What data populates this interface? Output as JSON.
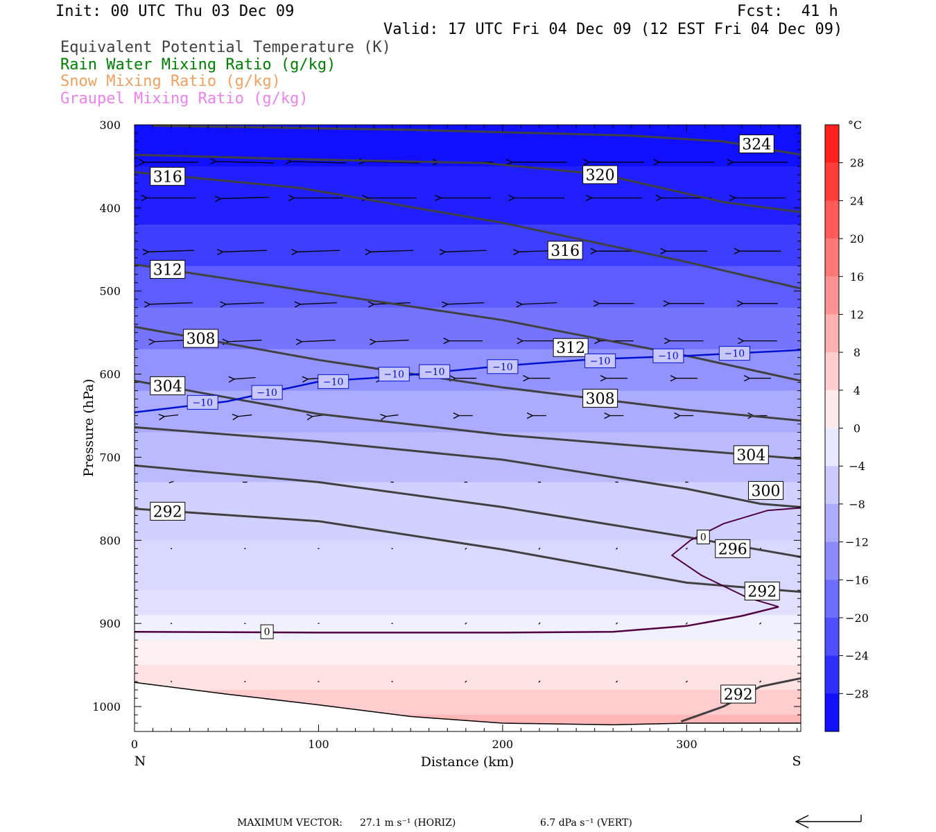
{
  "header": {
    "init": "Init: 00 UTC Thu 03 Dec 09",
    "fcst": "Fcst:  41 h",
    "valid": "Valid: 17 UTC Fri 04 Dec 09 (12 EST Fri 04 Dec 09)"
  },
  "legend_lines": [
    {
      "text": "Equivalent Potential Temperature (K)",
      "color": "#404040"
    },
    {
      "text": "Rain Water Mixing Ratio (g/kg)",
      "color": "#008000"
    },
    {
      "text": "Snow Mixing Ratio (g/kg)",
      "color": "#f0a060"
    },
    {
      "text": "Graupel Mixing Ratio (g/kg)",
      "color": "#f080f0"
    }
  ],
  "footer": {
    "label": "MAXIMUM VECTOR:",
    "horiz": "27.1 m s⁻¹ (HORIZ)",
    "vert": "6.7 dPa s⁻¹ (VERT)"
  },
  "chart_data": {
    "type": "heatmap",
    "title": "",
    "xlabel": "Distance (km)",
    "ylabel": "Pressure (hPa)",
    "xlim": [
      0,
      362
    ],
    "ylim": [
      1030,
      300
    ],
    "y_scale": "linear (inverted)",
    "x_ticks": [
      0,
      100,
      200,
      300
    ],
    "y_ticks": [
      300,
      400,
      500,
      600,
      700,
      800,
      900,
      1000
    ],
    "x_end_labels": {
      "left": "N",
      "right": "S"
    },
    "colorbar": {
      "unit": "°C",
      "ticks": [
        28,
        24,
        20,
        16,
        12,
        8,
        4,
        0,
        -4,
        -8,
        -12,
        -16,
        -20,
        -24,
        -28
      ],
      "tick_labels": [
        "28",
        "24",
        "20",
        "16",
        "12",
        "8",
        "4",
        "0",
        "−4",
        "−8",
        "−12",
        "−16",
        "−20",
        "−24",
        "−28"
      ],
      "min": -32,
      "max": 32,
      "step": 4
    },
    "temperature_bands": [
      {
        "p": 300,
        "t": -30
      },
      {
        "p": 350,
        "t": -28
      },
      {
        "p": 420,
        "t": -24
      },
      {
        "p": 470,
        "t": -20
      },
      {
        "p": 520,
        "t": -17
      },
      {
        "p": 570,
        "t": -13
      },
      {
        "p": 620,
        "t": -10
      },
      {
        "p": 670,
        "t": -8
      },
      {
        "p": 730,
        "t": -5
      },
      {
        "p": 800,
        "t": -4
      },
      {
        "p": 860,
        "t": -3
      },
      {
        "p": 890,
        "t": -1
      },
      {
        "p": 920,
        "t": 1
      },
      {
        "p": 950,
        "t": 3
      },
      {
        "p": 980,
        "t": 6
      },
      {
        "p": 1010,
        "t": 9
      }
    ],
    "theta_e_contours": [
      {
        "level": 324,
        "label": "324",
        "points": [
          [
            10,
            301
          ],
          [
            150,
            306
          ],
          [
            270,
            313
          ],
          [
            320,
            320
          ],
          [
            362,
            336
          ]
        ],
        "label_at": [
          338,
          323
        ]
      },
      {
        "level": 320,
        "label": "320",
        "points": [
          [
            0,
            336
          ],
          [
            100,
            342
          ],
          [
            190,
            346
          ],
          [
            255,
            360
          ],
          [
            320,
            393
          ],
          [
            362,
            405
          ]
        ],
        "label_at": [
          253,
          360
        ]
      },
      {
        "level": 316,
        "label": "316",
        "points": [
          [
            0,
            357
          ],
          [
            90,
            376
          ],
          [
            200,
            418
          ],
          [
            300,
            465
          ],
          [
            362,
            497
          ]
        ],
        "label_at": [
          18,
          362
        ],
        "label2": "316",
        "label2_at": [
          234,
          451
        ]
      },
      {
        "level": 312,
        "label": "312",
        "points": [
          [
            0,
            468
          ],
          [
            100,
            502
          ],
          [
            200,
            535
          ],
          [
            300,
            578
          ],
          [
            362,
            608
          ]
        ],
        "label_at": [
          18,
          474
        ],
        "label2": "312",
        "label2_at": [
          237,
          568
        ]
      },
      {
        "level": 308,
        "label": "308",
        "points": [
          [
            0,
            543
          ],
          [
            100,
            583
          ],
          [
            200,
            616
          ],
          [
            300,
            643
          ],
          [
            362,
            656
          ]
        ],
        "label_at": [
          36,
          557
        ],
        "label2": "308",
        "label2_at": [
          253,
          629
        ]
      },
      {
        "level": 304,
        "label": "304",
        "points": [
          [
            0,
            608
          ],
          [
            100,
            648
          ],
          [
            200,
            673
          ],
          [
            300,
            691
          ],
          [
            362,
            702
          ]
        ],
        "label_at": [
          18,
          614
        ],
        "label2": "304",
        "label2_at": [
          335,
          697
        ]
      },
      {
        "level": 300,
        "label": "300",
        "points": [
          [
            0,
            664
          ],
          [
            100,
            681
          ],
          [
            200,
            703
          ],
          [
            300,
            738
          ],
          [
            340,
            756
          ],
          [
            362,
            760
          ]
        ],
        "label_at": [
          343,
          740
        ]
      },
      {
        "level": 296,
        "label": "296",
        "points": [
          [
            0,
            710
          ],
          [
            100,
            730
          ],
          [
            200,
            760
          ],
          [
            300,
            796
          ],
          [
            362,
            820
          ]
        ],
        "label_at": [
          325,
          810
        ]
      },
      {
        "level": 292,
        "label": "292",
        "points": [
          [
            0,
            762
          ],
          [
            100,
            777
          ],
          [
            200,
            811
          ],
          [
            300,
            851
          ],
          [
            362,
            862
          ]
        ],
        "label_at": [
          18,
          765
        ],
        "label2": "292",
        "label2_at": [
          341,
          861
        ]
      },
      {
        "level": 292,
        "label": "292",
        "points": [
          [
            297,
            1018
          ],
          [
            320,
            1000
          ],
          [
            340,
            976
          ],
          [
            362,
            966
          ]
        ],
        "label_at": [
          328,
          985
        ]
      }
    ],
    "isotherm_minus10": {
      "label": "−10",
      "points": [
        [
          0,
          646
        ],
        [
          50,
          633
        ],
        [
          100,
          609
        ],
        [
          140,
          603
        ],
        [
          200,
          590
        ],
        [
          250,
          582
        ],
        [
          300,
          578
        ],
        [
          362,
          571
        ]
      ],
      "label_points": [
        [
          37,
          634
        ],
        [
          72,
          622
        ],
        [
          108,
          609
        ],
        [
          141,
          600
        ],
        [
          163,
          597
        ],
        [
          200,
          591
        ],
        [
          253,
          584
        ],
        [
          290,
          578
        ],
        [
          326,
          575
        ]
      ]
    },
    "isotherm_zero": {
      "label": "0",
      "surface_points": [
        [
          0,
          910
        ],
        [
          100,
          911
        ],
        [
          200,
          911
        ],
        [
          260,
          910
        ],
        [
          300,
          903
        ],
        [
          330,
          891
        ],
        [
          350,
          880
        ]
      ],
      "surface_label_at": [
        72,
        910
      ],
      "upper_points": [
        [
          350,
          880
        ],
        [
          333,
          869
        ],
        [
          308,
          842
        ],
        [
          292,
          818
        ],
        [
          302,
          800
        ],
        [
          320,
          780
        ],
        [
          344,
          764
        ],
        [
          362,
          761
        ]
      ],
      "upper_label_at": [
        309,
        796
      ]
    },
    "terrain": {
      "points": [
        [
          0,
          971
        ],
        [
          50,
          985
        ],
        [
          100,
          998
        ],
        [
          150,
          1012
        ],
        [
          200,
          1020
        ],
        [
          260,
          1022
        ],
        [
          300,
          1020
        ],
        [
          362,
          1020
        ]
      ]
    },
    "wind_vectors": [
      {
        "p": 345,
        "xs": [
          20,
          60,
          100,
          140,
          180,
          220,
          262,
          300,
          340
        ],
        "u": [
          -35,
          -38,
          -36,
          -36,
          -36,
          -36,
          -36,
          -36,
          -36
        ],
        "v": [
          0,
          1,
          1,
          1,
          0,
          0,
          0,
          0,
          0
        ]
      },
      {
        "p": 388,
        "xs": [
          20,
          60,
          100,
          140,
          180,
          220,
          262,
          300,
          340
        ],
        "u": [
          -32,
          -32,
          -32,
          -32,
          -33,
          -33,
          -33,
          -33,
          -33
        ],
        "v": [
          0,
          -1,
          0,
          0,
          0,
          0,
          0,
          0,
          0
        ]
      },
      {
        "p": 452,
        "xs": [
          20,
          60,
          100,
          140,
          180,
          220,
          262,
          300,
          340
        ],
        "u": [
          -30,
          -29,
          -28,
          -28,
          -27,
          -27,
          -27,
          -27,
          -27
        ],
        "v": [
          -1,
          -1,
          -1,
          -1,
          -1,
          -1,
          0,
          0,
          0
        ]
      },
      {
        "p": 515,
        "xs": [
          20,
          60,
          100,
          140,
          180,
          220,
          262,
          300,
          340
        ],
        "u": [
          -28,
          -25,
          -24,
          -24,
          -24,
          -23,
          -23,
          -23,
          -23
        ],
        "v": [
          -1,
          -1,
          -1,
          -1,
          -1,
          -1,
          0,
          0,
          0
        ]
      },
      {
        "p": 560,
        "xs": [
          20,
          60,
          100,
          140,
          180,
          220,
          262,
          300,
          340
        ],
        "u": [
          -22,
          -22,
          -22,
          -22,
          -22,
          -22,
          -22,
          -22,
          -22
        ],
        "v": [
          -1,
          -1,
          -1,
          -1,
          0,
          0,
          0,
          0,
          0
        ]
      },
      {
        "p": 605,
        "xs": [
          20,
          60,
          100,
          140,
          180,
          220,
          262,
          300,
          340
        ],
        "u": [
          -14,
          -14,
          -14,
          -14,
          -14,
          -14,
          -14,
          -14,
          -14
        ],
        "v": [
          -1,
          -1,
          -1,
          -1,
          0,
          0,
          0,
          0,
          0
        ]
      },
      {
        "p": 650,
        "xs": [
          20,
          60,
          100,
          140,
          180,
          220,
          262,
          300,
          340
        ],
        "u": [
          -9,
          -9,
          -8,
          -8,
          -9,
          -9,
          -9,
          -9,
          -9
        ],
        "v": [
          -1,
          -1,
          -1,
          -1,
          0,
          0,
          0,
          0,
          0
        ]
      },
      {
        "p": 730,
        "xs": [
          20,
          60,
          100,
          140,
          180,
          220,
          262,
          300,
          340
        ],
        "u": [
          -3,
          -3,
          -3,
          -2,
          -2,
          -2,
          -2,
          -2,
          -2
        ],
        "v": [
          -1,
          0,
          0,
          0,
          0,
          0,
          0,
          0,
          0
        ]
      },
      {
        "p": 810,
        "xs": [
          20,
          60,
          100,
          140,
          180,
          220,
          262,
          300,
          340
        ],
        "u": [
          -1,
          -1,
          -1,
          -1,
          1,
          1,
          1,
          1,
          1
        ],
        "v": [
          0,
          0,
          0,
          0,
          1,
          1,
          1,
          1,
          1
        ]
      },
      {
        "p": 900,
        "xs": [
          20,
          60,
          100,
          140,
          180,
          220,
          262,
          300,
          340
        ],
        "u": [
          -1,
          -1,
          -1,
          -1,
          1,
          1,
          1,
          1,
          1
        ],
        "v": [
          0,
          0,
          0,
          0,
          1,
          1,
          1,
          1,
          1
        ]
      },
      {
        "p": 970,
        "xs": [
          20,
          60,
          100,
          140,
          180,
          220,
          262,
          300,
          340
        ],
        "u": [
          -1,
          -1,
          -1,
          -1,
          1,
          1,
          1,
          1,
          1
        ],
        "v": [
          0,
          0,
          0,
          0,
          1,
          1,
          1,
          1,
          1
        ]
      }
    ]
  },
  "colors": {
    "theta_e": "#404040",
    "minus10_isotherm": "#0010d0",
    "zero_isotherm": "#500040",
    "terrain": "#000000"
  }
}
